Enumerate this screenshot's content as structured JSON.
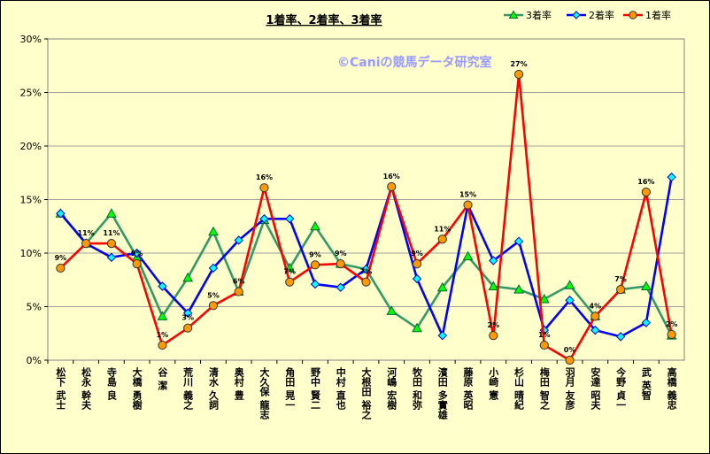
{
  "chart_data": {
    "type": "line",
    "title": "1着率、2着率、3着率",
    "watermark": "©Caniの競馬データ研究室",
    "ylim": [
      0,
      30
    ],
    "yticks": [
      "0%",
      "5%",
      "10%",
      "15%",
      "20%",
      "25%",
      "30%"
    ],
    "grid": true,
    "legend_position": "top-right",
    "categories": [
      "松下 武士",
      "松永 幹夫",
      "寺島 良",
      "大橋 勇樹",
      "谷 潔",
      "荒川 義之",
      "清水 久詞",
      "奥村 豊",
      "大久保 龍志",
      "角田 晃一",
      "野中 賢二",
      "中村 直也",
      "大根田 裕之",
      "河嶋 宏樹",
      "牧田 和弥",
      "濱田 多實雄",
      "藤原 英昭",
      "小崎 憲",
      "杉山 晴紀",
      "梅田 智之",
      "羽月 友彦",
      "安達 昭夫",
      "今野 貞一",
      "武 英智",
      "高橋 義忠"
    ],
    "series": [
      {
        "name": "3着率",
        "color": "#339966",
        "marker": "triangle",
        "values": [
          13.7,
          10.9,
          13.7,
          9.6,
          4.1,
          7.7,
          12.0,
          6.4,
          13.1,
          8.6,
          12.5,
          9.0,
          8.5,
          4.6,
          3.0,
          6.8,
          9.7,
          6.9,
          6.6,
          5.7,
          7.0,
          4.1,
          6.6,
          6.9,
          2.3
        ]
      },
      {
        "name": "2着率",
        "color": "#0000ff",
        "marker": "diamond",
        "values": [
          13.7,
          10.9,
          9.6,
          10.0,
          6.9,
          4.4,
          8.6,
          11.2,
          13.2,
          13.2,
          7.1,
          6.8,
          8.5,
          16.2,
          7.6,
          2.3,
          14.5,
          9.3,
          11.1,
          2.8,
          5.6,
          2.8,
          2.2,
          3.5,
          17.1
        ]
      },
      {
        "name": "1着率",
        "color": "#ff0000",
        "marker": "circle",
        "values": [
          8.6,
          10.9,
          10.9,
          9.0,
          1.4,
          3.0,
          5.1,
          6.4,
          16.1,
          7.3,
          8.9,
          9.0,
          7.3,
          16.2,
          9.0,
          11.3,
          14.5,
          2.3,
          26.7,
          1.4,
          0.0,
          4.1,
          6.6,
          15.7,
          2.4
        ],
        "data_labels": [
          "9%",
          "11%",
          "11%",
          "9%",
          "1%",
          "3%",
          "5%",
          "6%",
          "16%",
          "7%",
          "9%",
          "9%",
          "7%",
          "16%",
          "9%",
          "11%",
          "15%",
          "2%",
          "27%",
          "1%",
          "0%",
          "4%",
          "7%",
          "16%",
          "2%"
        ]
      }
    ]
  }
}
